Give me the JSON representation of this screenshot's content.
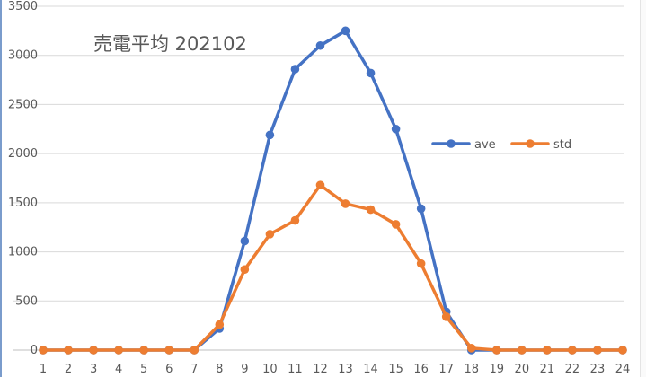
{
  "chart_data": {
    "type": "line",
    "title": "売電平均 202102",
    "categories": [
      "1",
      "2",
      "3",
      "4",
      "5",
      "6",
      "7",
      "8",
      "9",
      "10",
      "11",
      "12",
      "13",
      "14",
      "15",
      "16",
      "17",
      "18",
      "19",
      "20",
      "21",
      "22",
      "23",
      "24"
    ],
    "ylim": [
      0,
      3500
    ],
    "y_ticks": [
      "0",
      "500",
      "1000",
      "1500",
      "2000",
      "2500",
      "3000",
      "3500"
    ],
    "grid": "horizontal",
    "legend_position": "right",
    "series": [
      {
        "name": "ave",
        "color": "#4472C4",
        "values": [
          0,
          0,
          0,
          0,
          0,
          0,
          0,
          220,
          1110,
          2190,
          2860,
          3100,
          3250,
          2820,
          2250,
          1440,
          390,
          0,
          0,
          0,
          0,
          0,
          0,
          0
        ]
      },
      {
        "name": "std",
        "color": "#ED7D31",
        "values": [
          0,
          0,
          0,
          0,
          0,
          0,
          0,
          260,
          820,
          1180,
          1320,
          1680,
          1490,
          1430,
          1280,
          880,
          340,
          20,
          0,
          0,
          0,
          0,
          0,
          0
        ]
      }
    ]
  }
}
